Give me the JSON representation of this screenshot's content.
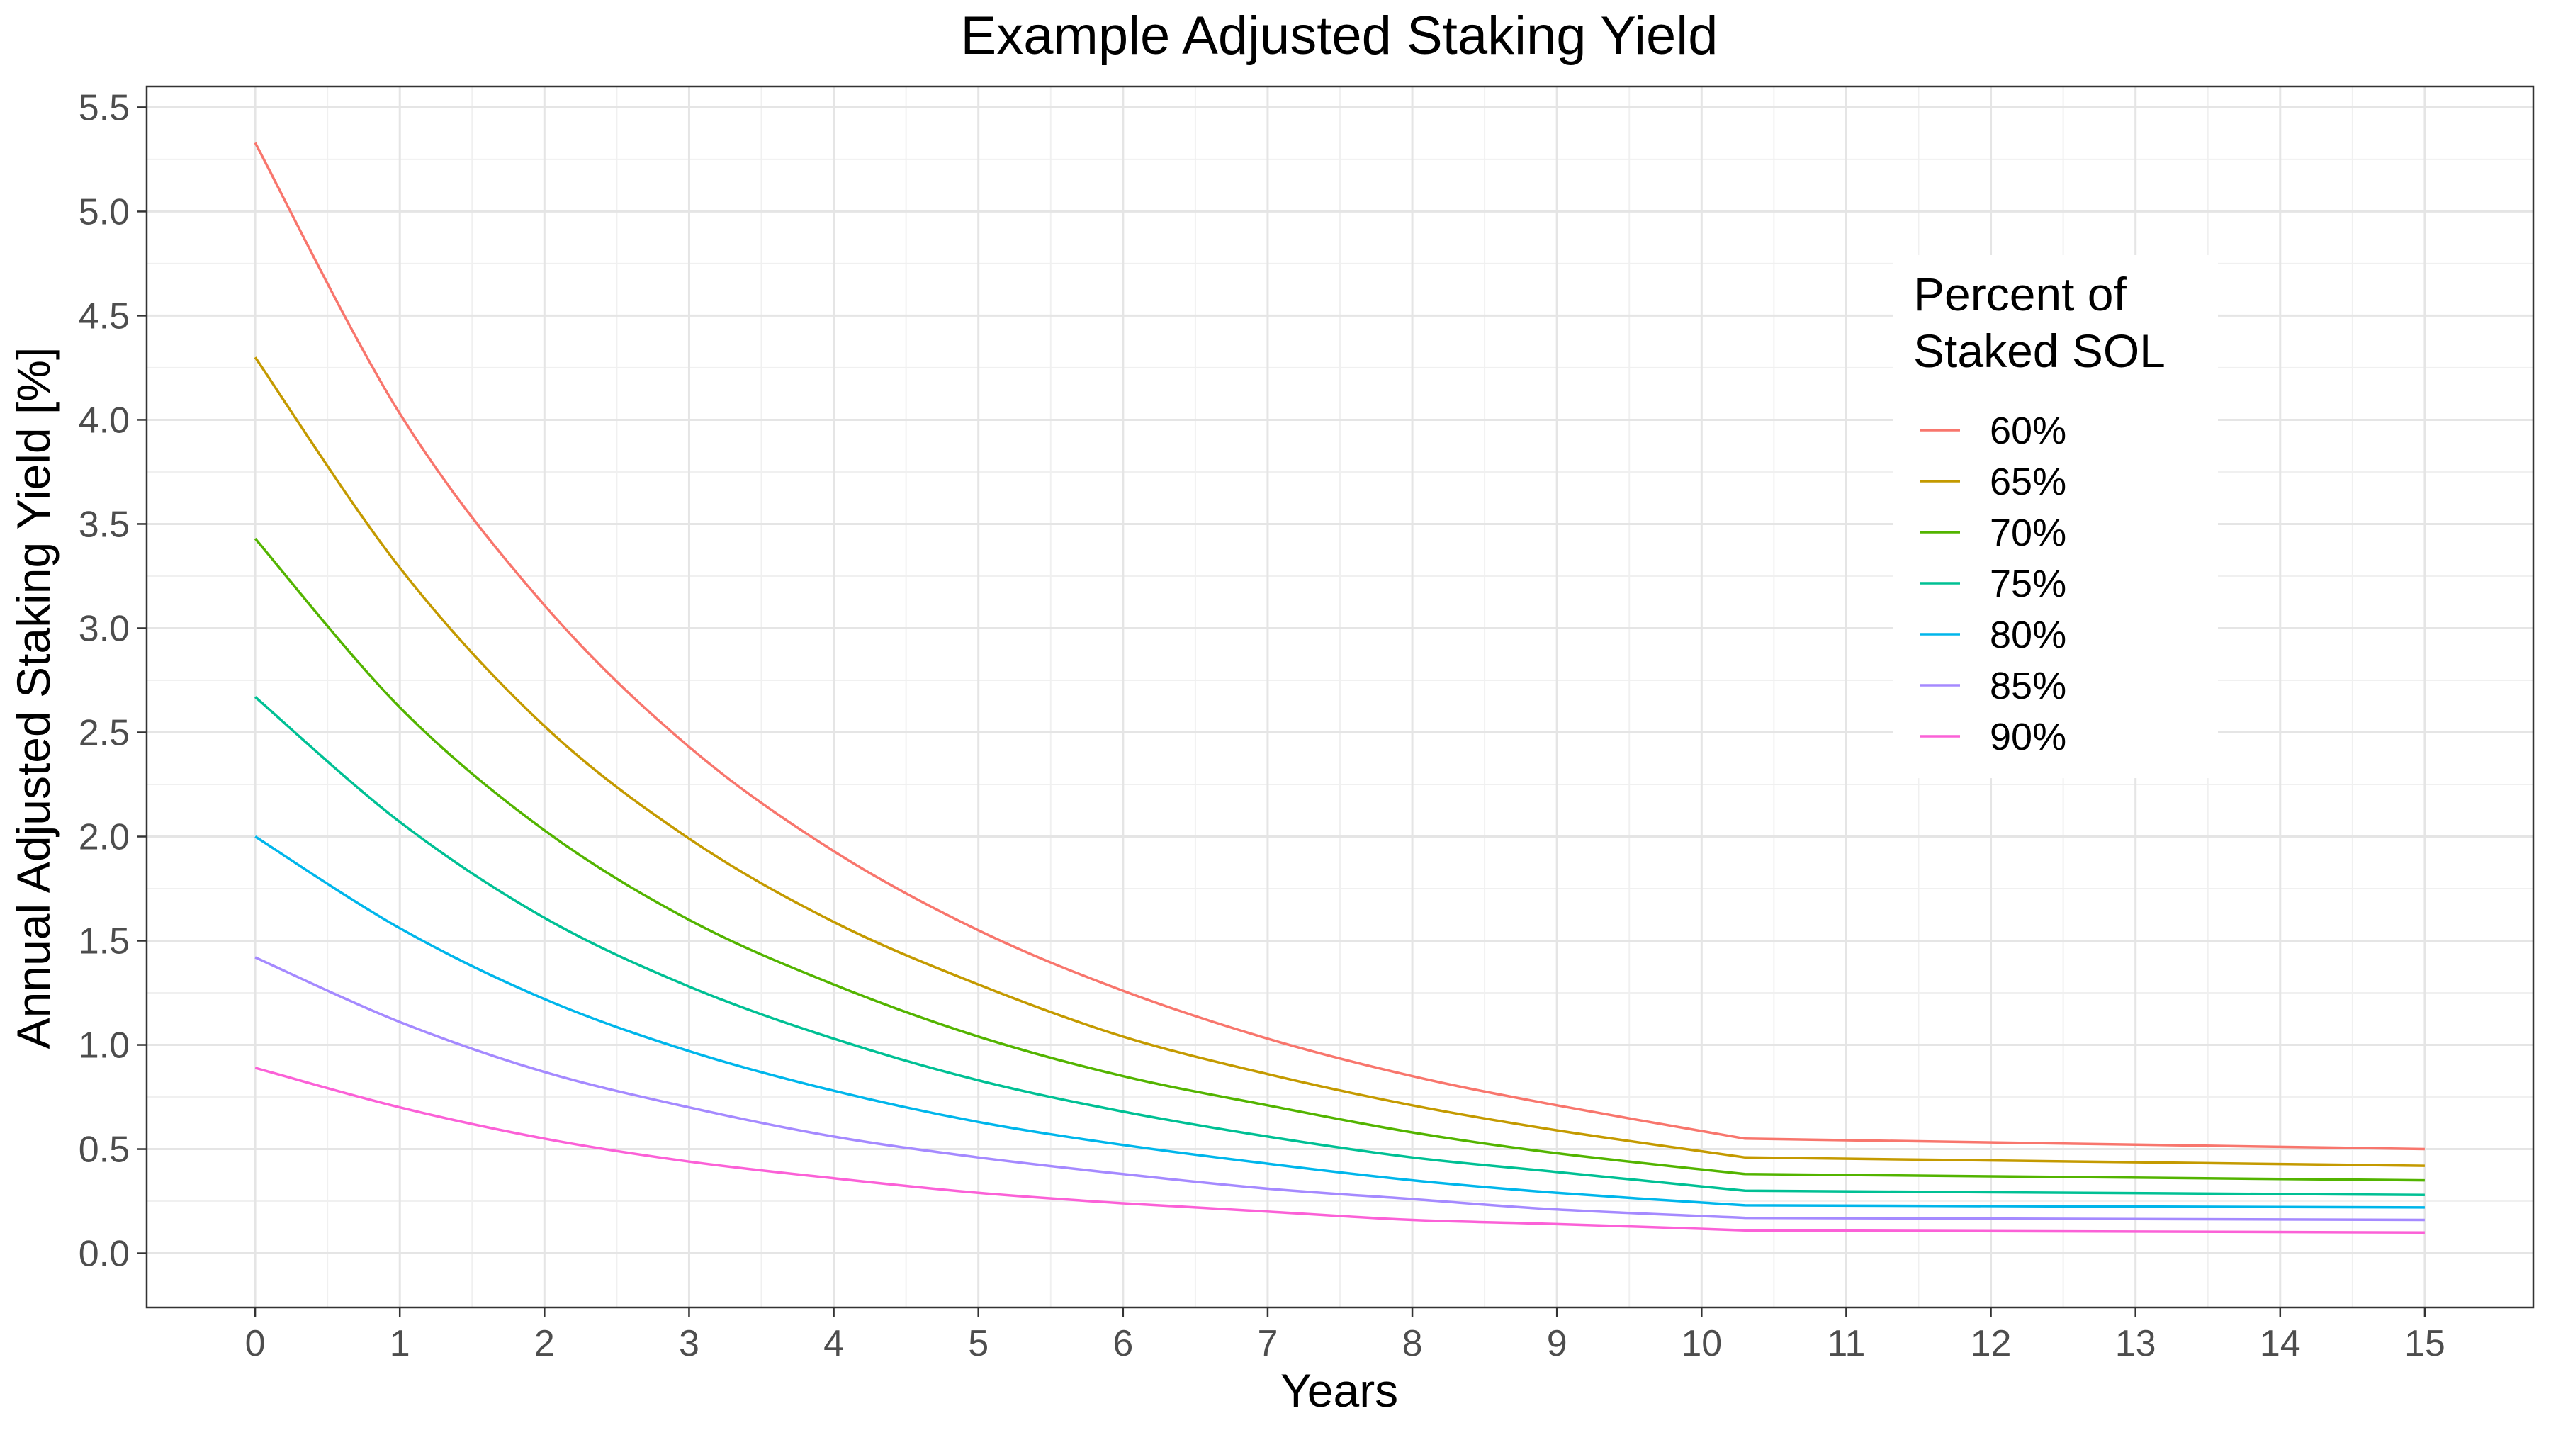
{
  "chart_data": {
    "type": "line",
    "title": "Example Adjusted Staking Yield",
    "xlabel": "Years",
    "ylabel": "Annual Adjusted Staking Yield [%]",
    "xlim": [
      -0.75,
      15.75
    ],
    "ylim": [
      -0.26,
      5.6
    ],
    "x_ticks": [
      0,
      1,
      2,
      3,
      4,
      5,
      6,
      7,
      8,
      9,
      10,
      11,
      12,
      13,
      14,
      15
    ],
    "x_tick_labels": [
      "0",
      "1",
      "2",
      "3",
      "4",
      "5",
      "6",
      "7",
      "8",
      "9",
      "10",
      "11",
      "12",
      "13",
      "14",
      "15"
    ],
    "y_ticks": [
      0,
      0.5,
      1,
      1.5,
      2,
      2.5,
      3,
      3.5,
      4,
      4.5,
      5,
      5.5
    ],
    "y_tick_labels": [
      "0.0",
      "0.5",
      "1.0",
      "1.5",
      "2.0",
      "2.5",
      "3.0",
      "3.5",
      "4.0",
      "4.5",
      "5.0",
      "5.5"
    ],
    "grid": true,
    "legend": {
      "title_lines": [
        "Percent of",
        "Staked SOL"
      ],
      "position": "top-right"
    },
    "series": [
      {
        "name": "60%",
        "color": "#F8766D",
        "x": [
          0,
          1,
          2,
          3,
          4,
          5,
          6,
          7,
          8,
          9,
          10.3,
          15
        ],
        "values": [
          5.33,
          4.03,
          3.11,
          2.43,
          1.93,
          1.55,
          1.26,
          1.03,
          0.85,
          0.71,
          0.55,
          0.5
        ]
      },
      {
        "name": "65%",
        "color": "#C49A00",
        "x": [
          0,
          1,
          2,
          3,
          4,
          5,
          6,
          7,
          8,
          9,
          10.3,
          15
        ],
        "values": [
          4.3,
          3.29,
          2.53,
          1.99,
          1.59,
          1.29,
          1.04,
          0.86,
          0.71,
          0.59,
          0.46,
          0.42
        ]
      },
      {
        "name": "70%",
        "color": "#53B400",
        "x": [
          0,
          1,
          2,
          3,
          4,
          5,
          6,
          7,
          8,
          9,
          10.3,
          15
        ],
        "values": [
          3.43,
          2.62,
          2.03,
          1.6,
          1.29,
          1.04,
          0.85,
          0.71,
          0.58,
          0.48,
          0.38,
          0.35
        ]
      },
      {
        "name": "75%",
        "color": "#00C094",
        "x": [
          0,
          1,
          2,
          3,
          4,
          5,
          6,
          7,
          8,
          9,
          10.3,
          15
        ],
        "values": [
          2.67,
          2.07,
          1.61,
          1.28,
          1.03,
          0.83,
          0.68,
          0.56,
          0.46,
          0.39,
          0.3,
          0.28
        ]
      },
      {
        "name": "80%",
        "color": "#00B6EB",
        "x": [
          0,
          1,
          2,
          3,
          4,
          5,
          6,
          7,
          8,
          9,
          10.3,
          15
        ],
        "values": [
          2.0,
          1.56,
          1.22,
          0.97,
          0.78,
          0.63,
          0.52,
          0.43,
          0.35,
          0.29,
          0.23,
          0.22
        ]
      },
      {
        "name": "85%",
        "color": "#A58AFF",
        "x": [
          0,
          1,
          2,
          3,
          4,
          5,
          6,
          7,
          8,
          9,
          10.3,
          15
        ],
        "values": [
          1.42,
          1.11,
          0.87,
          0.7,
          0.56,
          0.46,
          0.38,
          0.31,
          0.26,
          0.21,
          0.17,
          0.16
        ]
      },
      {
        "name": "90%",
        "color": "#FB61D7",
        "x": [
          0,
          1,
          2,
          3,
          4,
          5,
          6,
          7,
          8,
          9,
          10.3,
          15
        ],
        "values": [
          0.89,
          0.7,
          0.55,
          0.44,
          0.36,
          0.29,
          0.24,
          0.2,
          0.16,
          0.14,
          0.11,
          0.1
        ]
      }
    ]
  }
}
